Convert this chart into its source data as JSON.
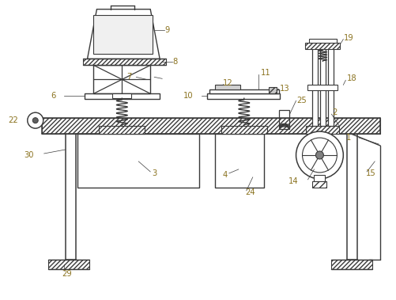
{
  "bg_color": "#ffffff",
  "line_color": "#3a3a3a",
  "label_color": "#8B7320",
  "fig_width": 5.01,
  "fig_height": 3.79,
  "xlim": [
    0,
    5.01
  ],
  "ylim": [
    0,
    3.79
  ]
}
